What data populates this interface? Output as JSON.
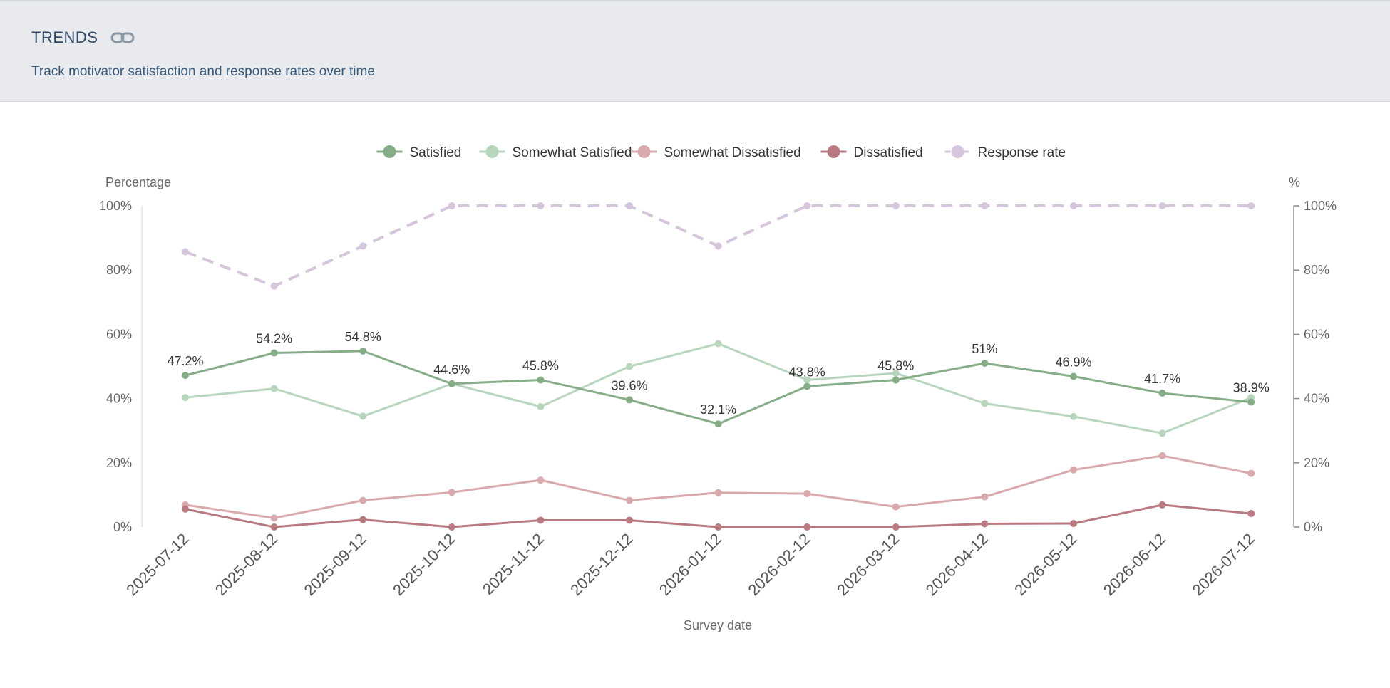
{
  "header": {
    "title": "TRENDS",
    "subtitle": "Track motivator satisfaction and response rates over time",
    "link_icon": "link-icon"
  },
  "chart_data": {
    "type": "line",
    "x_label": "Survey date",
    "y_label_left": "Percentage",
    "y_label_right": "%",
    "y_range": [
      0,
      100
    ],
    "y_ticks": [
      "0%",
      "20%",
      "40%",
      "60%",
      "80%",
      "100%"
    ],
    "grid": false,
    "legend_position": "top-center",
    "x": [
      "2025-07-12",
      "2025-08-12",
      "2025-09-12",
      "2025-10-12",
      "2025-11-12",
      "2025-12-12",
      "2026-01-12",
      "2026-02-12",
      "2026-03-12",
      "2026-04-12",
      "2026-05-12",
      "2026-06-12",
      "2026-07-12"
    ],
    "series": [
      {
        "name": "Satisfied",
        "color": "#86ad88",
        "dashed": false,
        "values": [
          47.2,
          54.2,
          54.8,
          44.6,
          45.8,
          39.6,
          32.1,
          43.8,
          45.8,
          51,
          46.9,
          41.7,
          38.9
        ],
        "labels": [
          "47.2%",
          "54.2%",
          "54.8%",
          "44.6%",
          "45.8%",
          "39.6%",
          "32.1%",
          "43.8%",
          "45.8%",
          "51%",
          "46.9%",
          "41.7%",
          "38.9%"
        ]
      },
      {
        "name": "Somewhat Satisfied",
        "color": "#b8d6bd",
        "dashed": false,
        "values": [
          40.3,
          43.1,
          34.5,
          44.6,
          37.5,
          50.0,
          57.1,
          45.8,
          47.9,
          38.5,
          34.4,
          29.2,
          40.3
        ]
      },
      {
        "name": "Somewhat Dissatisfied",
        "color": "#d8aaad",
        "dashed": false,
        "values": [
          6.9,
          2.8,
          8.3,
          10.8,
          14.6,
          8.3,
          10.7,
          10.4,
          6.3,
          9.4,
          17.8,
          22.2,
          16.7
        ]
      },
      {
        "name": "Dissatisfied",
        "color": "#b87a80",
        "dashed": false,
        "values": [
          5.6,
          0,
          2.3,
          0,
          2.1,
          2.1,
          0,
          0,
          0,
          1.0,
          1.1,
          6.9,
          4.2
        ]
      },
      {
        "name": "Response rate",
        "color": "#d5c6db",
        "dashed": true,
        "values": [
          85.7,
          75,
          87.5,
          100,
          100,
          100,
          87.5,
          100,
          100,
          100,
          100,
          100,
          100
        ]
      }
    ]
  }
}
